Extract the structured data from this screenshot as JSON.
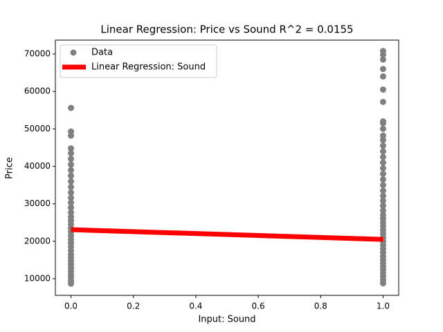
{
  "chart_data": {
    "type": "scatter",
    "title": "Linear Regression: Price vs Sound  R^2 = 0.0155",
    "x_label": "Input: Sound",
    "y_label": "Price",
    "xlim": [
      -0.05,
      1.05
    ],
    "xticks": [
      {
        "value": 0,
        "label": "0.0"
      },
      {
        "value": 0.2,
        "label": "0.2"
      },
      {
        "value": 0.4,
        "label": "0.4"
      },
      {
        "value": 0.6,
        "label": "0.6"
      },
      {
        "value": 0.8,
        "label": "0.8"
      },
      {
        "value": 1,
        "label": "1.0"
      }
    ],
    "ylim": [
      5570,
      73700
    ],
    "yticks": [
      10000,
      20000,
      30000,
      40000,
      50000,
      60000,
      70000
    ],
    "grid": false,
    "legend": "upper left",
    "series": [
      {
        "name": "Data",
        "type": "scatter",
        "color": "#808080",
        "x": [
          0,
          0,
          0,
          0,
          0,
          0,
          0,
          0,
          0,
          0,
          0,
          0,
          0,
          0,
          0,
          0,
          0,
          0,
          0,
          0,
          0,
          0,
          0,
          0,
          0,
          0,
          0,
          0,
          0,
          0,
          0,
          0,
          0,
          0,
          0,
          0,
          1,
          1,
          1,
          1,
          1,
          1,
          1,
          1,
          1,
          1,
          1,
          1,
          1,
          1,
          1,
          1,
          1,
          1,
          1,
          1,
          1,
          1,
          1,
          1,
          1,
          1,
          1,
          1,
          1,
          1,
          1,
          1,
          1,
          1,
          1,
          1,
          1,
          1,
          1,
          1,
          1,
          1,
          1,
          1,
          1
        ],
        "values": [
          8700,
          9500,
          10300,
          11100,
          12000,
          12900,
          13800,
          14700,
          15600,
          16500,
          17500,
          18500,
          19500,
          20500,
          21500,
          22500,
          23500,
          24500,
          25500,
          26500,
          27700,
          29000,
          30300,
          31600,
          33000,
          34500,
          36000,
          37500,
          39000,
          40500,
          42000,
          43500,
          44800,
          48200,
          49300,
          55600,
          8800,
          9700,
          10600,
          11500,
          12400,
          13300,
          14200,
          15100,
          16000,
          17000,
          18000,
          19000,
          20000,
          21000,
          22000,
          23000,
          24000,
          25000,
          26000,
          27000,
          28200,
          29500,
          30800,
          32100,
          33500,
          35000,
          36500,
          38000,
          39500,
          41000,
          42500,
          44000,
          45500,
          47000,
          48200,
          50000,
          51500,
          52000,
          57200,
          60500,
          64000,
          66000,
          68500,
          69800,
          70800
        ]
      },
      {
        "name": "Linear Regression: Sound",
        "type": "line",
        "color": "#ff0000",
        "x": [
          0,
          1
        ],
        "values": [
          23100,
          20500
        ]
      }
    ]
  }
}
